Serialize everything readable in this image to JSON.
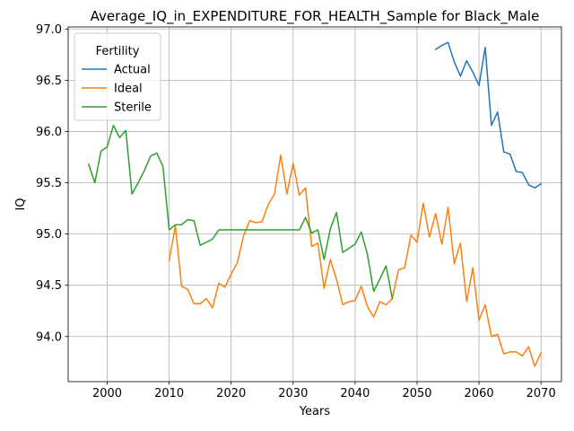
{
  "chart_data": {
    "type": "line",
    "title": "Average_IQ_in_EXPENDITURE_FOR_HEALTH_Sample for Black_Male",
    "xlabel": "Years",
    "ylabel": "IQ",
    "xlim": [
      1993.7,
      2073.3
    ],
    "ylim": [
      93.56,
      97.02
    ],
    "xticks": [
      2000,
      2010,
      2020,
      2030,
      2040,
      2050,
      2060,
      2070
    ],
    "yticks": [
      94.0,
      94.5,
      95.0,
      95.5,
      96.0,
      96.5,
      97.0
    ],
    "xtick_labels": [
      "2000",
      "2010",
      "2020",
      "2030",
      "2040",
      "2050",
      "2060",
      "2070"
    ],
    "ytick_labels": [
      "94.0",
      "94.5",
      "95.0",
      "95.5",
      "96.0",
      "96.5",
      "97.0"
    ],
    "grid": true,
    "legend": {
      "title": "Fertility",
      "placement": "top-left"
    },
    "series": [
      {
        "name": "Actual",
        "color": "#1f77b4",
        "x": [
          2053,
          2054,
          2055,
          2056,
          2057,
          2058,
          2059,
          2060,
          2061,
          2062,
          2063,
          2064,
          2065,
          2066,
          2067,
          2068,
          2069,
          2070
        ],
        "y": [
          96.8,
          96.84,
          96.87,
          96.68,
          96.54,
          96.69,
          96.58,
          96.45,
          96.82,
          96.06,
          96.19,
          95.8,
          95.78,
          95.61,
          95.6,
          95.48,
          95.45,
          95.49
        ]
      },
      {
        "name": "Ideal",
        "color": "#ff7f0e",
        "x": [
          2010,
          2011,
          2012,
          2013,
          2014,
          2015,
          2016,
          2017,
          2018,
          2019,
          2020,
          2021,
          2022,
          2023,
          2024,
          2025,
          2026,
          2027,
          2028,
          2029,
          2030,
          2031,
          2032,
          2033,
          2034,
          2035,
          2036,
          2037,
          2038,
          2039,
          2040,
          2041,
          2042,
          2043,
          2044,
          2045,
          2046,
          2047,
          2048,
          2049,
          2050,
          2051,
          2052,
          2053,
          2054,
          2055,
          2056,
          2057,
          2058,
          2059,
          2060,
          2061,
          2062,
          2063,
          2064,
          2065,
          2066,
          2067,
          2068,
          2069,
          2070
        ],
        "y": [
          94.74,
          95.08,
          94.49,
          94.46,
          94.32,
          94.32,
          94.37,
          94.28,
          94.52,
          94.48,
          94.61,
          94.72,
          94.98,
          95.13,
          95.11,
          95.12,
          95.29,
          95.39,
          95.77,
          95.39,
          95.69,
          95.38,
          95.45,
          94.88,
          94.91,
          94.47,
          94.75,
          94.56,
          94.31,
          94.34,
          94.35,
          94.49,
          94.29,
          94.19,
          94.34,
          94.31,
          94.37,
          94.65,
          94.67,
          94.99,
          94.92,
          95.3,
          94.97,
          95.2,
          94.9,
          95.26,
          94.71,
          94.91,
          94.34,
          94.67,
          94.16,
          94.31,
          94.0,
          94.02,
          93.83,
          93.85,
          93.85,
          93.81,
          93.9,
          93.71,
          93.84
        ]
      },
      {
        "name": "Sterile",
        "color": "#2ca02c",
        "x": [
          1997,
          1998,
          1999,
          2000,
          2001,
          2002,
          2003,
          2004,
          2005,
          2006,
          2007,
          2008,
          2009,
          2010,
          2011,
          2012,
          2013,
          2014,
          2015,
          2016,
          2017,
          2018,
          2019,
          2020,
          2021,
          2022,
          2023,
          2024,
          2025,
          2026,
          2027,
          2028,
          2029,
          2030,
          2031,
          2032,
          2033,
          2034,
          2035,
          2036,
          2037,
          2038,
          2039,
          2040,
          2041,
          2042,
          2043,
          2044,
          2045,
          2046
        ],
        "y": [
          95.68,
          95.5,
          95.81,
          95.85,
          96.06,
          95.94,
          96.01,
          95.39,
          95.5,
          95.62,
          95.76,
          95.79,
          95.66,
          95.04,
          95.09,
          95.09,
          95.14,
          95.13,
          94.89,
          94.92,
          94.95,
          95.04,
          95.04,
          95.04,
          95.04,
          95.04,
          95.04,
          95.04,
          95.04,
          95.04,
          95.04,
          95.04,
          95.04,
          95.04,
          95.04,
          95.16,
          95.01,
          95.04,
          94.75,
          95.05,
          95.21,
          94.82,
          94.86,
          94.9,
          95.02,
          94.8,
          94.44,
          94.56,
          94.69,
          94.37
        ]
      }
    ]
  }
}
